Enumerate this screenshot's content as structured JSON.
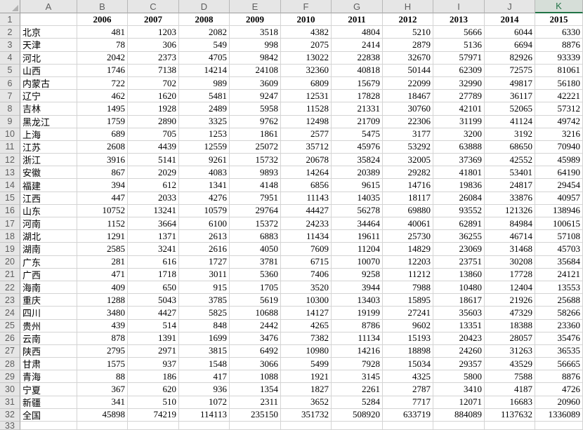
{
  "spreadsheet": {
    "corner_label": "",
    "column_letters": [
      "A",
      "B",
      "C",
      "D",
      "E",
      "F",
      "G",
      "H",
      "I",
      "J",
      "K"
    ],
    "selected_column": "K",
    "first_row_number": "1",
    "trailing_row_number": "33",
    "year_headers": [
      "2006",
      "2007",
      "2008",
      "2009",
      "2010",
      "2011",
      "2012",
      "2013",
      "2014",
      "2015"
    ],
    "colors": {
      "accent_green": "#217346",
      "header_bg": "#e6e6e6",
      "selected_header_bg": "#d6ded8",
      "gridline": "#d4d4d4",
      "cell_text": "#000000",
      "header_text": "#5f5f5f"
    },
    "rows": [
      {
        "row": 2,
        "label": "北京",
        "values": [
          481,
          1203,
          2082,
          3518,
          4382,
          4804,
          5210,
          5666,
          6044,
          6330
        ]
      },
      {
        "row": 3,
        "label": "天津",
        "values": [
          78,
          306,
          549,
          998,
          2075,
          2414,
          2879,
          5136,
          6694,
          8876
        ]
      },
      {
        "row": 4,
        "label": "河北",
        "values": [
          2042,
          2373,
          4705,
          9842,
          13022,
          22838,
          32670,
          57971,
          82926,
          93339
        ]
      },
      {
        "row": 5,
        "label": "山西",
        "values": [
          1746,
          7138,
          14214,
          24108,
          32360,
          40818,
          50144,
          62309,
          72575,
          81061
        ]
      },
      {
        "row": 6,
        "label": "内蒙古",
        "values": [
          722,
          702,
          989,
          3609,
          6809,
          15679,
          22099,
          32990,
          49817,
          56180
        ]
      },
      {
        "row": 7,
        "label": "辽宁",
        "values": [
          462,
          1620,
          5481,
          9247,
          12531,
          17828,
          18467,
          27789,
          36117,
          42221
        ]
      },
      {
        "row": 8,
        "label": "吉林",
        "values": [
          1495,
          1928,
          2489,
          5958,
          11528,
          21331,
          30760,
          42101,
          52065,
          57312
        ]
      },
      {
        "row": 9,
        "label": "黑龙江",
        "values": [
          1759,
          2890,
          3325,
          9762,
          12498,
          21709,
          22306,
          31199,
          41124,
          49742
        ]
      },
      {
        "row": 10,
        "label": "上海",
        "values": [
          689,
          705,
          1253,
          1861,
          2577,
          5475,
          3177,
          3200,
          3192,
          3216
        ]
      },
      {
        "row": 11,
        "label": "江苏",
        "values": [
          2608,
          4439,
          12559,
          25072,
          35712,
          45976,
          53292,
          63888,
          68650,
          70940
        ]
      },
      {
        "row": 12,
        "label": "浙江",
        "values": [
          3916,
          5141,
          9261,
          15732,
          20678,
          35824,
          32005,
          37369,
          42552,
          45989
        ]
      },
      {
        "row": 13,
        "label": "安徽",
        "values": [
          867,
          2029,
          4083,
          9893,
          14264,
          20389,
          29282,
          41801,
          53401,
          64190
        ]
      },
      {
        "row": 14,
        "label": "福建",
        "values": [
          394,
          612,
          1341,
          4148,
          6856,
          9615,
          14716,
          19836,
          24817,
          29454
        ]
      },
      {
        "row": 15,
        "label": "江西",
        "values": [
          447,
          2033,
          4276,
          7951,
          11143,
          14035,
          18117,
          26084,
          33876,
          40957
        ]
      },
      {
        "row": 16,
        "label": "山东",
        "values": [
          10752,
          13241,
          10579,
          29764,
          44427,
          56278,
          69880,
          93552,
          121326,
          138946
        ]
      },
      {
        "row": 17,
        "label": "河南",
        "values": [
          1152,
          3664,
          6100,
          15372,
          24233,
          34464,
          40061,
          62891,
          84984,
          100615
        ]
      },
      {
        "row": 18,
        "label": "湖北",
        "values": [
          1291,
          1371,
          2613,
          6883,
          11434,
          19611,
          25730,
          36255,
          46714,
          57108
        ]
      },
      {
        "row": 19,
        "label": "湖南",
        "values": [
          2585,
          3241,
          2616,
          4050,
          7609,
          11204,
          14829,
          23069,
          31468,
          45703
        ]
      },
      {
        "row": 20,
        "label": "广东",
        "values": [
          281,
          616,
          1727,
          3781,
          6715,
          10070,
          12203,
          23751,
          30208,
          35684
        ]
      },
      {
        "row": 21,
        "label": "广西",
        "values": [
          471,
          1718,
          3011,
          5360,
          7406,
          9258,
          11212,
          13860,
          17728,
          24121
        ]
      },
      {
        "row": 22,
        "label": "海南",
        "values": [
          409,
          650,
          915,
          1705,
          3520,
          3944,
          7988,
          10480,
          12404,
          13553
        ]
      },
      {
        "row": 23,
        "label": "重庆",
        "values": [
          1288,
          5043,
          3785,
          5619,
          10300,
          13403,
          15895,
          18617,
          21926,
          25688
        ]
      },
      {
        "row": 24,
        "label": "四川",
        "values": [
          3480,
          4427,
          5825,
          10688,
          14127,
          19199,
          27241,
          35603,
          47329,
          58266
        ]
      },
      {
        "row": 25,
        "label": "贵州",
        "values": [
          439,
          514,
          848,
          2442,
          4265,
          8786,
          9602,
          13351,
          18388,
          23360
        ]
      },
      {
        "row": 26,
        "label": "云南",
        "values": [
          878,
          1391,
          1699,
          3476,
          7382,
          11134,
          15193,
          20423,
          28057,
          35476
        ]
      },
      {
        "row": 27,
        "label": "陕西",
        "values": [
          2795,
          2971,
          3815,
          6492,
          10980,
          14216,
          18898,
          24260,
          31263,
          36535
        ]
      },
      {
        "row": 28,
        "label": "甘肃",
        "values": [
          1575,
          937,
          1548,
          3066,
          5499,
          7928,
          15034,
          29357,
          43529,
          56665
        ]
      },
      {
        "row": 29,
        "label": "青海",
        "values": [
          88,
          186,
          417,
          1088,
          1921,
          3145,
          4325,
          5800,
          7588,
          8876
        ]
      },
      {
        "row": 30,
        "label": "宁夏",
        "values": [
          367,
          620,
          936,
          1354,
          1827,
          2261,
          2787,
          3410,
          4187,
          4726
        ]
      },
      {
        "row": 31,
        "label": "新疆",
        "values": [
          341,
          510,
          1072,
          2311,
          3652,
          5284,
          7717,
          12071,
          16683,
          20960
        ]
      },
      {
        "row": 32,
        "label": "全国",
        "values": [
          45898,
          74219,
          114113,
          235150,
          351732,
          508920,
          633719,
          884089,
          1137632,
          1336089
        ]
      }
    ]
  }
}
